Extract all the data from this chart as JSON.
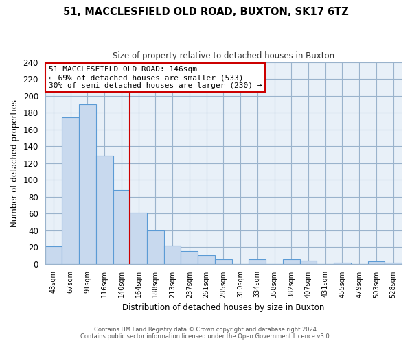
{
  "title": "51, MACCLESFIELD OLD ROAD, BUXTON, SK17 6TZ",
  "subtitle": "Size of property relative to detached houses in Buxton",
  "xlabel": "Distribution of detached houses by size in Buxton",
  "ylabel": "Number of detached properties",
  "bar_labels": [
    "43sqm",
    "67sqm",
    "91sqm",
    "116sqm",
    "140sqm",
    "164sqm",
    "188sqm",
    "213sqm",
    "237sqm",
    "261sqm",
    "285sqm",
    "310sqm",
    "334sqm",
    "358sqm",
    "382sqm",
    "407sqm",
    "431sqm",
    "455sqm",
    "479sqm",
    "503sqm",
    "528sqm"
  ],
  "bar_values": [
    21,
    174,
    190,
    129,
    88,
    61,
    40,
    22,
    15,
    10,
    5,
    0,
    5,
    0,
    5,
    4,
    0,
    1,
    0,
    3,
    1
  ],
  "bar_color": "#c8d9ee",
  "bar_edge_color": "#5b9bd5",
  "plot_bg_color": "#e8f0f8",
  "vline_x": 4.5,
  "vline_color": "#cc0000",
  "ylim": [
    0,
    240
  ],
  "yticks": [
    0,
    20,
    40,
    60,
    80,
    100,
    120,
    140,
    160,
    180,
    200,
    220,
    240
  ],
  "annotation_title": "51 MACCLESFIELD OLD ROAD: 146sqm",
  "annotation_line1": "← 69% of detached houses are smaller (533)",
  "annotation_line2": "30% of semi-detached houses are larger (230) →",
  "annotation_box_color": "#ffffff",
  "annotation_border_color": "#cc0000",
  "footer_line1": "Contains HM Land Registry data © Crown copyright and database right 2024.",
  "footer_line2": "Contains public sector information licensed under the Open Government Licence v3.0.",
  "background_color": "#ffffff",
  "grid_color": "#9ab3cc"
}
